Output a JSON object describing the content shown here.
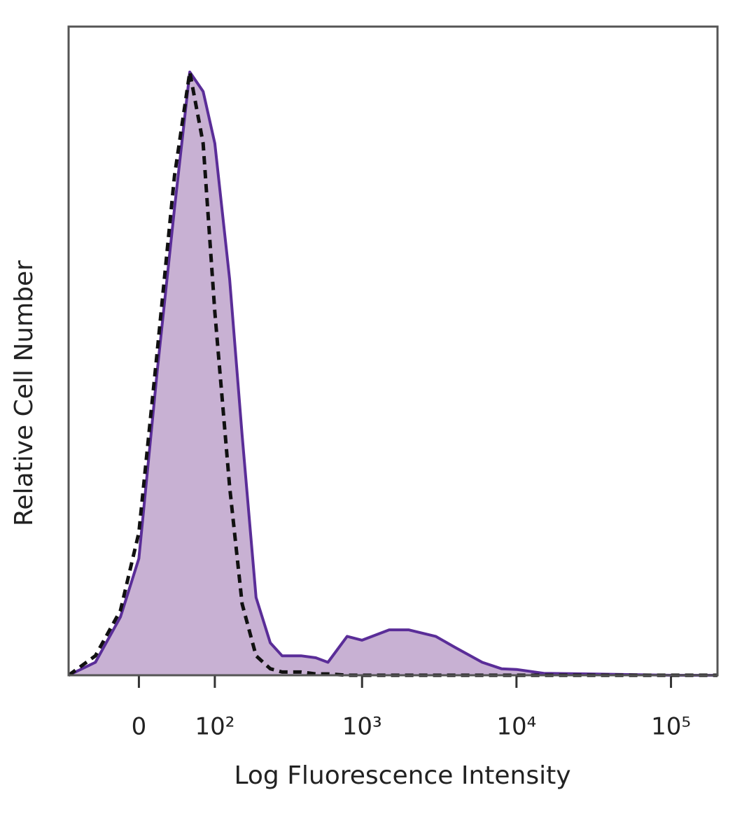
{
  "chart_data": {
    "type": "line",
    "x_label": "Log Fluorescence Intensity",
    "y_label": "Relative Cell Number",
    "x_scale": "biexponential",
    "x": [
      -90,
      -50,
      -20,
      0,
      20,
      40,
      60,
      80,
      100,
      130,
      160,
      200,
      250,
      300,
      400,
      500,
      600,
      800,
      1000,
      1500,
      2000,
      3000,
      4000,
      6000,
      8000,
      10000,
      15000,
      30000,
      100000,
      200000
    ],
    "series": [
      {
        "color": "#5a2d98",
        "fill": "#c8b1d3",
        "dashed": false,
        "values": [
          0,
          2,
          9,
          18,
          47,
          72,
          93,
          90,
          82,
          61,
          37,
          12,
          5,
          3,
          3,
          2.7,
          2,
          6,
          5.4,
          7,
          7,
          6,
          4.3,
          2,
          1,
          0.9,
          0.3,
          0.2,
          0,
          0
        ]
      },
      {
        "color": "#111111",
        "fill": null,
        "dashed": true,
        "values": [
          0,
          3,
          10,
          22,
          50,
          77,
          93,
          82,
          56,
          29,
          11,
          3,
          1,
          0.5,
          0.5,
          0.2,
          0.2,
          0,
          0,
          0,
          0,
          0,
          0,
          0,
          0,
          0,
          0,
          0,
          0,
          0
        ]
      }
    ],
    "xlim": [
      -90,
      200000
    ],
    "ylim": [
      0,
      100
    ],
    "xticks": [
      0,
      {
        "value": 100,
        "label": "10²"
      },
      {
        "value": 1000,
        "label": "10³"
      },
      {
        "value": 10000,
        "label": "10⁴"
      },
      {
        "value": 100000,
        "label": "10⁵"
      }
    ]
  }
}
